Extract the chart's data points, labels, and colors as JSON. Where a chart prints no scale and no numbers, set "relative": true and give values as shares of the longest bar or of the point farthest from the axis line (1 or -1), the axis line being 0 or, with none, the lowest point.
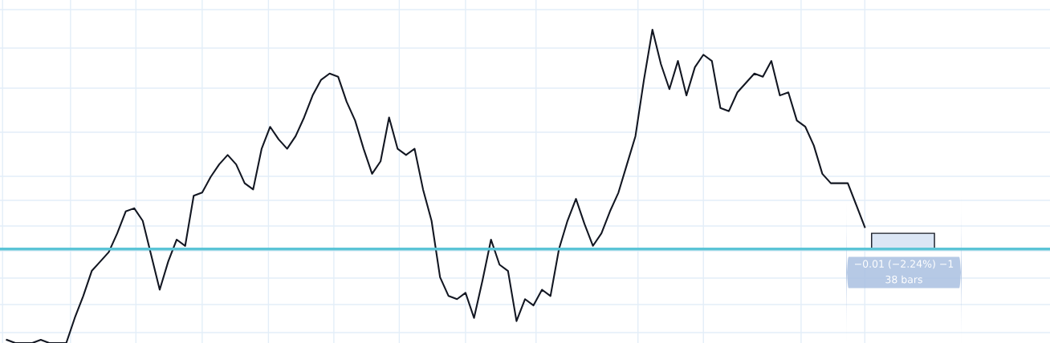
{
  "chart_data": {
    "type": "line",
    "relative": true,
    "grid": true,
    "categories": [
      null,
      null,
      null,
      null,
      null,
      null,
      null,
      null,
      null,
      null,
      null,
      null,
      null,
      null,
      null,
      null,
      null,
      null,
      null,
      null,
      null,
      null,
      null,
      null,
      null,
      null,
      null,
      null,
      null,
      null,
      null,
      null,
      null,
      null,
      null,
      null,
      null,
      null,
      null,
      null,
      null,
      null,
      null,
      null,
      null,
      null,
      null,
      null,
      null,
      null,
      null,
      null,
      null,
      null,
      null,
      null,
      null,
      null,
      null,
      null,
      null,
      null,
      null,
      null,
      null,
      null,
      null,
      null,
      null,
      null,
      null,
      null,
      null,
      null,
      null,
      null,
      null,
      null,
      null,
      null,
      null,
      null,
      null,
      null,
      null,
      null,
      null,
      null,
      null,
      null,
      null,
      null,
      null,
      null,
      null,
      null,
      null,
      null,
      null,
      null,
      null,
      null
    ],
    "series": [
      {
        "color": "#131722",
        "values": [
          0.01,
          0,
          0,
          0,
          0.01,
          0,
          0,
          0,
          0.08,
          0.15,
          0.23,
          0.26,
          0.29,
          0.35,
          0.42,
          0.43,
          0.39,
          0.28,
          0.17,
          0.26,
          0.33,
          0.31,
          0.47,
          0.48,
          0.53,
          0.57,
          0.6,
          0.57,
          0.51,
          0.49,
          0.62,
          0.69,
          0.65,
          0.62,
          0.66,
          0.72,
          0.79,
          0.84,
          0.86,
          0.85,
          0.77,
          0.71,
          0.62,
          0.54,
          0.58,
          0.72,
          0.62,
          0.6,
          0.62,
          0.49,
          0.39,
          0.21,
          0.15,
          0.14,
          0.16,
          0.08,
          0.2,
          0.33,
          0.25,
          0.23,
          0.07,
          0.14,
          0.12,
          0.17,
          0.15,
          0.3,
          0.39,
          0.46,
          0.38,
          0.31,
          0.35,
          0.42,
          0.48,
          0.57,
          0.66,
          0.84,
          1,
          0.89,
          0.81,
          0.9,
          0.79,
          0.88,
          0.92,
          0.9,
          0.75,
          0.74,
          0.8,
          0.83,
          0.86,
          0.85,
          0.9,
          0.79,
          0.8,
          0.71,
          0.69,
          0.63,
          0.54,
          0.51,
          0.51,
          0.51,
          0.44,
          0.37
        ]
      }
    ],
    "ref_lines": [
      {
        "axis": "y",
        "value": 0.3,
        "color": "#5bc4d6"
      }
    ],
    "annotations": [
      "−0.01 (−2.24%) −1",
      "38 bars"
    ]
  }
}
